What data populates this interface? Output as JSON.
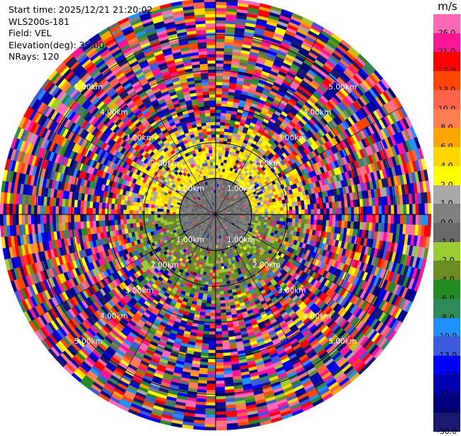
{
  "info": {
    "start_time": "Start time: 2025/12/21 21:20:02",
    "instrument": "WLS200s-181",
    "field": "Field: VEL",
    "elevation": "Elevation(deg): 35.00",
    "nrays": "NRays: 120"
  },
  "colorbar": {
    "unit": "m/s",
    "levels": [
      {
        "label": "-30.0",
        "color": "#191970"
      },
      {
        "label": "-26.0",
        "color": "#000080"
      },
      {
        "label": "-21.0",
        "color": "#0000b4"
      },
      {
        "label": "-17.0",
        "color": "#0000ff"
      },
      {
        "label": "-13.0",
        "color": "#3c5adc"
      },
      {
        "label": "-10.0",
        "color": "#1e90ff"
      },
      {
        "label": "-8.0",
        "color": "#2e8b57"
      },
      {
        "label": "-6.0",
        "color": "#228b22"
      },
      {
        "label": "-4.0",
        "color": "#6b8e23"
      },
      {
        "label": "-2.0",
        "color": "#9acd32"
      },
      {
        "label": "-1.0",
        "color": "#696969"
      },
      {
        "label": "0.0",
        "color": "#808080"
      },
      {
        "label": "1.0",
        "color": "#a9a9a9"
      },
      {
        "label": "2.0",
        "color": "#ffff00"
      },
      {
        "label": "4.0",
        "color": "#ffd700"
      },
      {
        "label": "6.0",
        "color": "#ffa500"
      },
      {
        "label": "8.0",
        "color": "#ff7f50"
      },
      {
        "label": "10.0",
        "color": "#ff6347"
      },
      {
        "label": "13.0",
        "color": "#ff4500"
      },
      {
        "label": "17.0",
        "color": "#ff0000"
      },
      {
        "label": "21.0",
        "color": "#ff1493"
      },
      {
        "label": "26.0",
        "color": "#ff69b4"
      }
    ]
  },
  "chart_data": {
    "type": "heatmap",
    "projection": "polar PPI",
    "field": "VEL",
    "units": "m/s",
    "nrays": 120,
    "max_range_km": 6.0,
    "range_rings_km": [
      1.0,
      2.0,
      3.0,
      4.0,
      5.0
    ],
    "range_ring_labels": [
      "1.00km",
      "2.00km",
      "3.00km",
      "4.00km",
      "5.00km"
    ],
    "value_range": [
      -30.0,
      30.0
    ],
    "pattern": {
      "near_range_km": 1.0,
      "near_values_m_s": [
        -1.0,
        1.0
      ],
      "mid_range_km": [
        1.0,
        2.5
      ],
      "mid_values_north_m_s": [
        1.0,
        6.0
      ],
      "mid_values_south_m_s": [
        -4.0,
        0.0
      ],
      "far_range_values": "noise spanning full scale"
    }
  }
}
